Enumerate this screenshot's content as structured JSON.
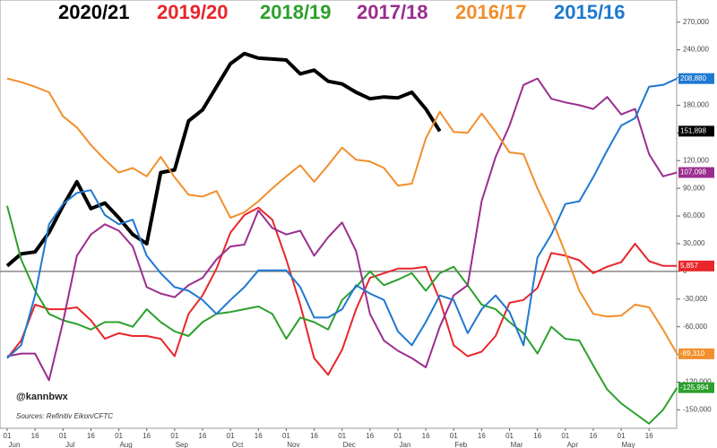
{
  "chart_data": {
    "type": "line",
    "categories": [
      "01",
      null,
      "16",
      null,
      "01",
      null,
      "16",
      null,
      "01",
      null,
      "16",
      null,
      "01",
      null,
      "16",
      null,
      "01",
      null,
      "16",
      null,
      "01",
      null,
      "16",
      null,
      "01",
      null,
      "16",
      null,
      "01",
      null,
      "16",
      null,
      "01",
      null,
      "16",
      null,
      "01",
      null,
      "16",
      null,
      "01",
      null,
      "16",
      null,
      "01",
      null,
      "16",
      null,
      null
    ],
    "months": [
      "Jun",
      "Jul",
      "Aug",
      "Sep",
      "Oct",
      "Nov",
      "Dec",
      "Jan",
      "Feb",
      "Mar",
      "Apr",
      "May"
    ],
    "series": [
      {
        "name": "2020/21",
        "color": "#000000",
        "end_label": "151,898",
        "values": [
          6000,
          19000,
          21000,
          42000,
          71000,
          97000,
          68000,
          74000,
          58000,
          40000,
          30000,
          107000,
          110000,
          163000,
          175000,
          200000,
          225000,
          236000,
          231000,
          230000,
          229000,
          214000,
          218000,
          206000,
          203000,
          194000,
          187000,
          189000,
          188000,
          194000,
          176000,
          151898,
          null,
          null,
          null,
          null,
          null,
          null,
          null,
          null,
          null,
          null,
          null,
          null,
          null,
          null,
          null,
          null,
          null
        ]
      },
      {
        "name": "2019/20",
        "color": "#e8262b",
        "end_label": "5,857",
        "values": [
          -94000,
          -75000,
          -36000,
          -41000,
          -41000,
          -39000,
          -53000,
          -73000,
          -67000,
          -70000,
          -70000,
          -73000,
          -92000,
          -46000,
          -26000,
          3000,
          42000,
          61000,
          69000,
          56000,
          13000,
          -36000,
          -94000,
          -112000,
          -85000,
          -41000,
          -7000,
          -2000,
          3000,
          3000,
          5000,
          -31000,
          -80000,
          -92000,
          -87000,
          -70000,
          -34000,
          -31000,
          -18000,
          20000,
          17000,
          12000,
          -2000,
          5000,
          10000,
          30000,
          11000,
          6000,
          5857
        ]
      },
      {
        "name": "2018/19",
        "color": "#2ca02c",
        "end_label": "-125,994",
        "values": [
          71000,
          13000,
          -21000,
          -46000,
          -53000,
          -57000,
          -63000,
          -55000,
          -55000,
          -60000,
          -41000,
          -55000,
          -65000,
          -70000,
          -55000,
          -46000,
          -44000,
          -41000,
          -38000,
          -46000,
          -73000,
          -50000,
          -55000,
          -63000,
          -31000,
          -17000,
          0,
          -15000,
          -9000,
          -2000,
          -21000,
          -2000,
          5000,
          -15000,
          -36000,
          -41000,
          -55000,
          -67000,
          -89000,
          -60000,
          -73000,
          -75000,
          -102000,
          -128000,
          -143000,
          -154000,
          -165000,
          -150000,
          -125994
        ]
      },
      {
        "name": "2017/18",
        "color": "#9b2d8e",
        "end_label": "107,098",
        "values": [
          -92000,
          -89000,
          -89000,
          -118000,
          -55000,
          17000,
          40000,
          51000,
          44000,
          27000,
          -17000,
          -24000,
          -28000,
          -15000,
          -7000,
          13000,
          27000,
          29000,
          66000,
          47000,
          40000,
          44000,
          17000,
          37000,
          53000,
          22000,
          -46000,
          -75000,
          -86000,
          -94000,
          -104000,
          -60000,
          -26000,
          -15000,
          76000,
          124000,
          158000,
          202000,
          209000,
          187000,
          183000,
          180000,
          176000,
          189000,
          170000,
          176000,
          127000,
          103000,
          107098
        ]
      },
      {
        "name": "2016/17",
        "color": "#f28e2b",
        "end_label": "-89,310",
        "values": [
          209000,
          205000,
          200000,
          194000,
          168000,
          156000,
          137000,
          121000,
          107000,
          112000,
          103000,
          124000,
          102000,
          83000,
          81000,
          87000,
          58000,
          64000,
          76000,
          90000,
          103000,
          115000,
          97000,
          115000,
          134000,
          121000,
          119000,
          112000,
          93000,
          95000,
          144000,
          173000,
          151000,
          150000,
          171000,
          151000,
          129000,
          127000,
          90000,
          58000,
          20000,
          -21000,
          -46000,
          -49000,
          -48000,
          -36000,
          -39000,
          -63000,
          -89310
        ]
      },
      {
        "name": "2015/16",
        "color": "#1f78d1",
        "end_label": "208,880",
        "values": [
          -94000,
          -80000,
          -26000,
          51000,
          73000,
          85000,
          88000,
          61000,
          51000,
          56000,
          17000,
          -2000,
          -17000,
          -21000,
          -31000,
          -46000,
          -31000,
          -17000,
          1000,
          1000,
          1000,
          -17000,
          -50000,
          -50000,
          -41000,
          -15000,
          -24000,
          -31000,
          -65000,
          -80000,
          -55000,
          -26000,
          -31000,
          -67000,
          -41000,
          -26000,
          -44000,
          -80000,
          15000,
          40000,
          73000,
          76000,
          102000,
          131000,
          158000,
          166000,
          200000,
          202000,
          208880
        ]
      }
    ],
    "ylim": [
      -170000,
      294000
    ],
    "yticks": [
      {
        "value": 270000,
        "label": "270,000"
      },
      {
        "value": 240000,
        "label": "240,000"
      },
      {
        "value": 210000,
        "label": "210,000"
      },
      {
        "value": 180000,
        "label": "180,000"
      },
      {
        "value": 150000,
        "label": "150,000"
      },
      {
        "value": 120000,
        "label": "120,000"
      },
      {
        "value": 90000,
        "label": "90,000"
      },
      {
        "value": 60000,
        "label": "60,000"
      },
      {
        "value": 30000,
        "label": "30,000"
      },
      0,
      {
        "value": -30000,
        "label": "-30,000"
      },
      {
        "value": -60000,
        "label": "-60,000"
      },
      {
        "value": -90000,
        "label": "-90,000"
      },
      {
        "value": -120000,
        "label": "-120,000"
      },
      {
        "value": -150000,
        "label": "-150,000"
      }
    ],
    "annotations": [
      "@kannbwx",
      "Sources: Refinitiv Eikon/CFTC"
    ]
  }
}
